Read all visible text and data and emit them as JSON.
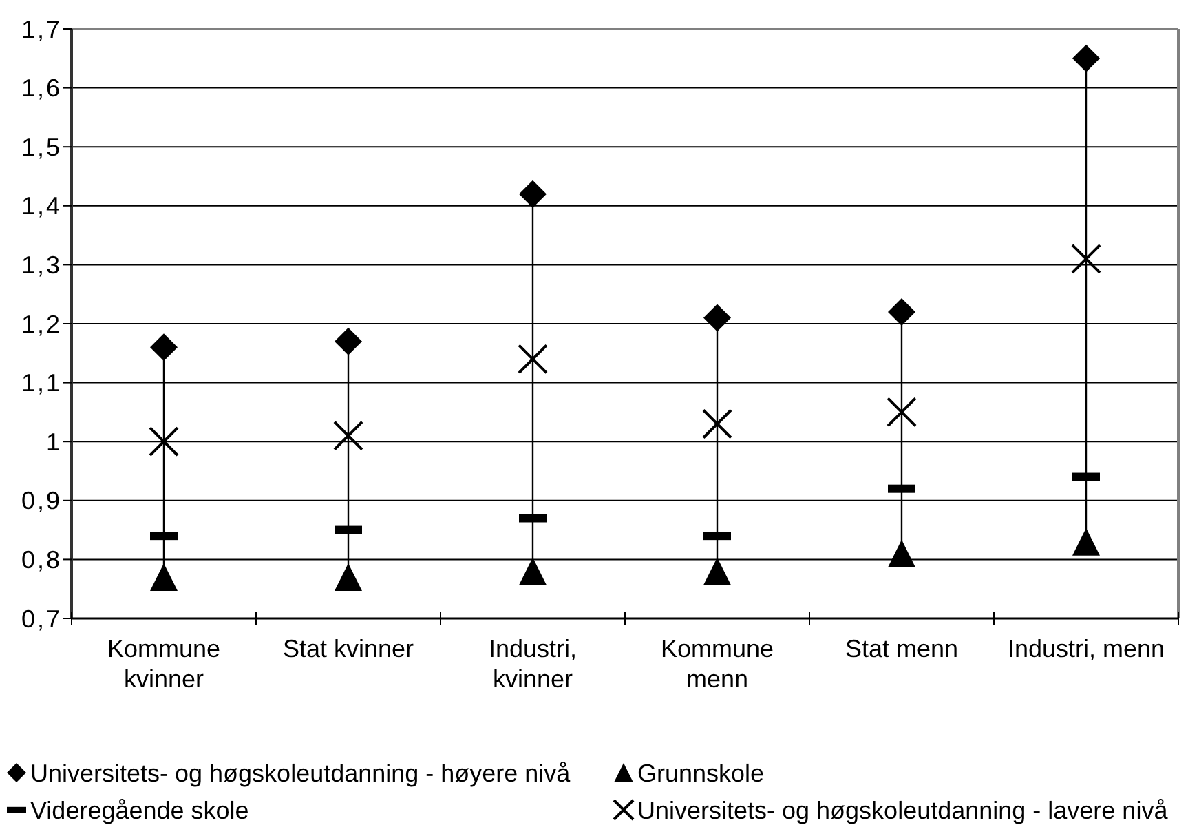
{
  "chart_data": {
    "type": "scatter",
    "categories": [
      "Kommune kvinner",
      "Stat kvinner",
      "Industri, kvinner",
      "Kommune menn",
      "Stat menn",
      "Industri, menn"
    ],
    "series": [
      {
        "type": "line",
        "color": "#000000",
        "x": [
          "Kommune kvinner",
          "Kommune kvinner"
        ],
        "values": [
          0.77,
          1.16
        ]
      },
      {
        "type": "line",
        "color": "#000000",
        "x": [
          "Stat kvinner",
          "Stat kvinner"
        ],
        "values": [
          0.77,
          1.17
        ]
      },
      {
        "type": "line",
        "color": "#000000",
        "x": [
          "Industri, kvinner",
          "Industri, kvinner"
        ],
        "values": [
          0.78,
          1.42
        ]
      },
      {
        "type": "line",
        "color": "#000000",
        "x": [
          "Kommune menn",
          "Kommune menn"
        ],
        "values": [
          0.78,
          1.21
        ]
      },
      {
        "type": "line",
        "color": "#000000",
        "x": [
          "Stat menn",
          "Stat menn"
        ],
        "values": [
          0.81,
          1.22
        ]
      },
      {
        "type": "line",
        "color": "#000000",
        "x": [
          "Industri, menn",
          "Industri, menn"
        ],
        "values": [
          0.83,
          1.65
        ]
      },
      {
        "name": "Universitets- og høgskoleutdanning - høyere nivå",
        "color": "#000000",
        "marker": "diamond",
        "values": [
          1.16,
          1.17,
          1.42,
          1.21,
          1.22,
          1.65
        ]
      },
      {
        "name": "Grunnskole",
        "color": "#000000",
        "marker": "triangle",
        "values": [
          0.77,
          0.77,
          0.78,
          0.78,
          0.81,
          0.83
        ]
      },
      {
        "name": "Videregående skole",
        "color": "#000000",
        "values": [
          0.84,
          0.85,
          0.87,
          0.84,
          0.92,
          0.94
        ]
      },
      {
        "name": "Universitets- og høgskoleutdanning - lavere nivå",
        "color": "#000000",
        "marker": "cross",
        "values": [
          1.0,
          1.01,
          1.14,
          1.03,
          1.05,
          1.31
        ]
      }
    ],
    "ylim": [
      0.7,
      1.7
    ],
    "yticks": [
      {
        "value": 0.7,
        "label": "0,7"
      },
      {
        "value": 0.8,
        "label": "0,8"
      },
      {
        "value": 0.9,
        "label": "0,9"
      },
      1,
      {
        "value": 1.1,
        "label": "1,1"
      },
      {
        "value": 1.2,
        "label": "1,2"
      },
      {
        "value": 1.3,
        "label": "1,3"
      },
      {
        "value": 1.4,
        "label": "1,4"
      },
      {
        "value": 1.5,
        "label": "1,5"
      },
      {
        "value": 1.6,
        "label": "1,6"
      },
      {
        "value": 1.7,
        "label": "1,7"
      }
    ],
    "grid": "y",
    "legend": "bottom"
  }
}
